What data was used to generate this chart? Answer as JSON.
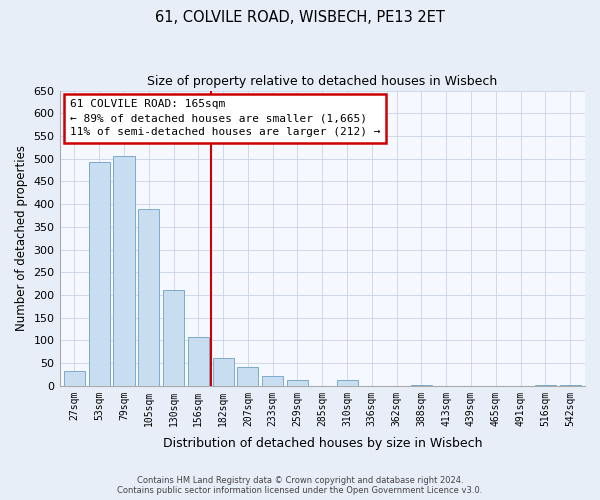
{
  "title": "61, COLVILE ROAD, WISBECH, PE13 2ET",
  "subtitle": "Size of property relative to detached houses in Wisbech",
  "xlabel": "Distribution of detached houses by size in Wisbech",
  "ylabel": "Number of detached properties",
  "bar_labels": [
    "27sqm",
    "53sqm",
    "79sqm",
    "105sqm",
    "130sqm",
    "156sqm",
    "182sqm",
    "207sqm",
    "233sqm",
    "259sqm",
    "285sqm",
    "310sqm",
    "336sqm",
    "362sqm",
    "388sqm",
    "413sqm",
    "439sqm",
    "465sqm",
    "491sqm",
    "516sqm",
    "542sqm"
  ],
  "bar_values": [
    32,
    492,
    505,
    390,
    210,
    108,
    62,
    42,
    22,
    13,
    0,
    12,
    0,
    0,
    2,
    0,
    0,
    0,
    0,
    1,
    2
  ],
  "bar_color": "#c9ddf0",
  "bar_edge_color": "#7aabcc",
  "vline_x": 5.5,
  "annotation_title": "61 COLVILE ROAD: 165sqm",
  "annotation_line1": "← 89% of detached houses are smaller (1,665)",
  "annotation_line2": "11% of semi-detached houses are larger (212) →",
  "annotation_box_facecolor": "#ffffff",
  "annotation_box_edgecolor": "#cc0000",
  "vline_color": "#cc0000",
  "ylim": [
    0,
    650
  ],
  "yticks": [
    0,
    50,
    100,
    150,
    200,
    250,
    300,
    350,
    400,
    450,
    500,
    550,
    600,
    650
  ],
  "footer_line1": "Contains HM Land Registry data © Crown copyright and database right 2024.",
  "footer_line2": "Contains public sector information licensed under the Open Government Licence v3.0.",
  "bg_color": "#e8eef8",
  "plot_bg_color": "#f5f8ff",
  "grid_color": "#c8d4e8"
}
